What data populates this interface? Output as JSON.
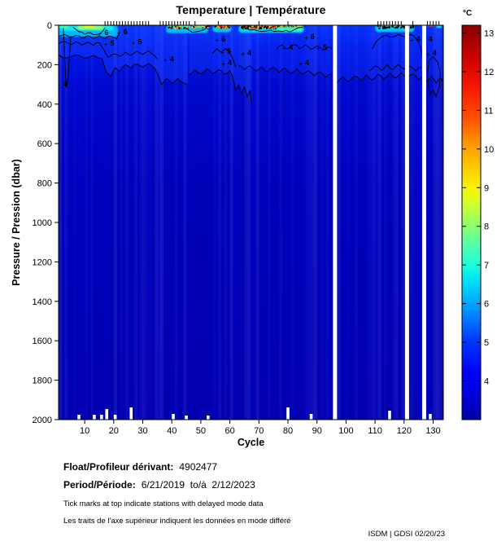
{
  "chart_data": {
    "type": "heatmap",
    "title": "Temperature | Température",
    "xlabel": "Cycle",
    "ylabel": "Pressure / Pression (dbar)",
    "xlim": [
      1,
      133.5
    ],
    "ylim": [
      0,
      2000
    ],
    "x_ticks": [
      10,
      20,
      30,
      40,
      50,
      60,
      70,
      80,
      90,
      100,
      110,
      120,
      130
    ],
    "y_ticks": [
      0,
      200,
      400,
      600,
      800,
      1000,
      1200,
      1400,
      1600,
      1800,
      2000
    ],
    "colorbar": {
      "unit": "°C",
      "vmin": 3,
      "vmax": 13.2,
      "ticks": [
        4,
        5,
        6,
        7,
        8,
        9,
        10,
        11,
        12,
        13
      ],
      "stops": [
        [
          3,
          "#0000A6"
        ],
        [
          3.6,
          "#0000D8"
        ],
        [
          4.2,
          "#0000FA"
        ],
        [
          5,
          "#0034FF"
        ],
        [
          6,
          "#00A4FF"
        ],
        [
          6.6,
          "#00E0F8"
        ],
        [
          7,
          "#1CFFDA"
        ],
        [
          7.6,
          "#5CFFA2"
        ],
        [
          8,
          "#8CFF72"
        ],
        [
          8.6,
          "#D2FF2C"
        ],
        [
          9,
          "#F8F400"
        ],
        [
          10,
          "#FFA400"
        ],
        [
          10.8,
          "#FF5000"
        ],
        [
          11.6,
          "#F81800"
        ],
        [
          12.4,
          "#C80000"
        ],
        [
          13.2,
          "#8C0000"
        ]
      ]
    },
    "base_gradient": [
      [
        0,
        "#0030FC"
      ],
      [
        0.06,
        "#0018EE"
      ],
      [
        0.16,
        "#000AD2"
      ],
      [
        0.4,
        "#0002C0"
      ],
      [
        1,
        "#0000B6"
      ]
    ],
    "region_fill_color": "#1C46FF",
    "surface_patches": [
      {
        "c": [
          1,
          21.5
        ],
        "d": [
          0,
          58
        ],
        "t": 6.2
      },
      {
        "c": [
          1.5,
          20
        ],
        "d": [
          0,
          28
        ],
        "t": 6.8
      },
      {
        "c": [
          7.5,
          16.5
        ],
        "d": [
          0,
          22
        ],
        "t": 8.0
      },
      {
        "c": [
          9.5,
          13.5
        ],
        "d": [
          1,
          13
        ],
        "t": 8.8
      },
      {
        "c": [
          1,
          4.5
        ],
        "d": [
          0,
          14
        ],
        "t": 7.4
      },
      {
        "c": [
          38,
          52.5
        ],
        "d": [
          2,
          40
        ],
        "t": 6.3
      },
      {
        "c": [
          38.5,
          52.5
        ],
        "d": [
          0,
          13
        ],
        "t": 7.5,
        "sp": [
          "#000000",
          "#000000",
          "#b01000",
          "#ff8800",
          "#ffee00",
          "#00e0ff"
        ]
      },
      {
        "c": [
          54,
          60.5
        ],
        "d": [
          2,
          35
        ],
        "t": 6.4
      },
      {
        "c": [
          54.5,
          60
        ],
        "d": [
          0,
          11
        ],
        "t": 9.6,
        "sp": [
          "#000000",
          "#c01000",
          "#ff8800"
        ]
      },
      {
        "c": [
          63,
          85.5
        ],
        "d": [
          2,
          38
        ],
        "t": 6.5
      },
      {
        "c": [
          63.5,
          85
        ],
        "d": [
          0,
          14
        ],
        "t": 9.4,
        "sp": [
          "#000000",
          "#000000",
          "#d02000"
        ]
      },
      {
        "c": [
          76,
          85
        ],
        "d": [
          8,
          30
        ],
        "t": 7.2
      },
      {
        "c": [
          110,
          123.5
        ],
        "d": [
          0,
          34
        ],
        "t": 6.4
      },
      {
        "c": [
          112,
          119
        ],
        "d": [
          0,
          14
        ],
        "t": 7.8
      },
      {
        "c": [
          115.5,
          120
        ],
        "d": [
          0,
          10
        ],
        "t": 9.0
      },
      {
        "c": [
          118.8,
          120.8
        ],
        "d": [
          0,
          9
        ],
        "t": 11.3
      },
      {
        "c": [
          120.8,
          122.3
        ],
        "d": [
          1,
          9
        ],
        "t": 10.0
      },
      {
        "c": [
          110.5,
          123
        ],
        "d": [
          0,
          12
        ],
        "t": 6.5,
        "sp": [
          "#000000",
          "#000000",
          "#101010"
        ]
      },
      {
        "c": [
          127.8,
          130.5
        ],
        "d": [
          0,
          6
        ],
        "t": 10.8
      },
      {
        "c": [
          131,
          133
        ],
        "d": [
          0,
          14
        ],
        "t": 6.8
      }
    ],
    "contours": [
      {
        "pts": [
          [
            1,
            150
          ],
          [
            4,
            165
          ],
          [
            7,
            150
          ],
          [
            10,
            168
          ],
          [
            13,
            152
          ],
          [
            16,
            170
          ],
          [
            17.5,
            240
          ],
          [
            19,
            258
          ],
          [
            20.5,
            215
          ],
          [
            22,
            236
          ],
          [
            24,
            200
          ],
          [
            26,
            218
          ],
          [
            28,
            196
          ],
          [
            30,
            212
          ],
          [
            32,
            194
          ],
          [
            34,
            216
          ],
          [
            35.5,
            258
          ],
          [
            36.5,
            302
          ],
          [
            38,
            272
          ],
          [
            40,
            296
          ],
          [
            42,
            270
          ],
          [
            44,
            292
          ],
          [
            45.5,
            302
          ]
        ],
        "fill": 0.38
      },
      {
        "pts": [
          [
            2.6,
            15
          ],
          [
            3,
            120
          ],
          [
            3.4,
            260
          ],
          [
            3.8,
            315
          ],
          [
            4.3,
            250
          ],
          [
            4.8,
            140
          ],
          [
            5.2,
            55
          ]
        ],
        "fill": 0
      },
      {
        "pts": [
          [
            1,
            95
          ],
          [
            3,
            82
          ],
          [
            5,
            98
          ],
          [
            7,
            84
          ],
          [
            9,
            100
          ],
          [
            11,
            86
          ],
          [
            13,
            102
          ],
          [
            15,
            88
          ],
          [
            16.5,
            122
          ],
          [
            18,
            162
          ],
          [
            20,
            146
          ],
          [
            22,
            158
          ],
          [
            24,
            136
          ],
          [
            26,
            150
          ],
          [
            28,
            132
          ],
          [
            30,
            148
          ],
          [
            32,
            130
          ],
          [
            34,
            152
          ],
          [
            35,
            172
          ]
        ],
        "fill": 0
      },
      {
        "pts": [
          [
            1,
            58
          ],
          [
            3,
            48
          ],
          [
            5,
            62
          ],
          [
            7,
            50
          ],
          [
            9,
            64
          ],
          [
            11,
            52
          ],
          [
            13,
            66
          ],
          [
            15,
            54
          ],
          [
            17,
            68
          ],
          [
            19,
            56
          ],
          [
            21,
            70
          ],
          [
            21.8,
            40
          ]
        ],
        "fill": 0
      },
      {
        "pts": [
          [
            46,
            252
          ],
          [
            48,
            226
          ],
          [
            50,
            246
          ],
          [
            52,
            222
          ],
          [
            54,
            246
          ],
          [
            56,
            226
          ],
          [
            58,
            248
          ],
          [
            60,
            230
          ],
          [
            61,
            262
          ],
          [
            62,
            330
          ],
          [
            63,
            302
          ],
          [
            64,
            346
          ],
          [
            65,
            312
          ],
          [
            66,
            362
          ],
          [
            67,
            332
          ],
          [
            67.6,
            405
          ]
        ],
        "fill": 0.32
      },
      {
        "pts": [
          [
            54,
            142
          ],
          [
            55.5,
            120
          ],
          [
            57,
            138
          ],
          [
            58.5,
            118
          ],
          [
            60,
            140
          ],
          [
            61,
            172
          ],
          [
            62,
            212
          ]
        ],
        "fill": 0
      },
      {
        "pts": [
          [
            63,
            202
          ],
          [
            65,
            226
          ],
          [
            67,
            206
          ],
          [
            69,
            232
          ],
          [
            71,
            212
          ],
          [
            73,
            236
          ],
          [
            75,
            214
          ],
          [
            77,
            240
          ],
          [
            79,
            216
          ],
          [
            81,
            244
          ],
          [
            83,
            222
          ],
          [
            85,
            250
          ],
          [
            87,
            230
          ],
          [
            89,
            256
          ],
          [
            91,
            236
          ],
          [
            93,
            264
          ],
          [
            95.3,
            246
          ]
        ],
        "fill": 0.2
      },
      {
        "pts": [
          [
            76,
            122
          ],
          [
            78,
            100
          ],
          [
            80,
            118
          ],
          [
            82,
            98
          ],
          [
            84,
            118
          ],
          [
            86,
            100
          ],
          [
            88,
            122
          ],
          [
            90,
            104
          ],
          [
            92,
            126
          ],
          [
            94,
            108
          ],
          [
            95.3,
            120
          ]
        ],
        "fill": 0
      },
      {
        "pts": [
          [
            97,
            292
          ],
          [
            99,
            262
          ],
          [
            101,
            286
          ],
          [
            103,
            258
          ],
          [
            105,
            282
          ],
          [
            107,
            252
          ],
          [
            109,
            278
          ],
          [
            111,
            248
          ],
          [
            113,
            272
          ],
          [
            115,
            242
          ],
          [
            117,
            268
          ],
          [
            119,
            240
          ],
          [
            121,
            268
          ],
          [
            123,
            246
          ],
          [
            125,
            276
          ],
          [
            126.5,
            255
          ],
          [
            128,
            286
          ],
          [
            129.5,
            258
          ],
          [
            131,
            292
          ],
          [
            132.5,
            266
          ],
          [
            133.5,
            288
          ]
        ],
        "fill": 0.22
      },
      {
        "pts": [
          [
            108,
            232
          ],
          [
            110,
            206
          ],
          [
            112,
            228
          ],
          [
            114,
            200
          ],
          [
            116,
            226
          ],
          [
            118,
            198
          ],
          [
            120,
            222
          ],
          [
            122,
            206
          ],
          [
            124,
            232
          ],
          [
            126,
            212
          ]
        ],
        "fill": 0
      },
      {
        "pts": [
          [
            109,
            120
          ],
          [
            110.5,
            80
          ],
          [
            112,
            62
          ],
          [
            114,
            50
          ],
          [
            116,
            60
          ],
          [
            118,
            46
          ],
          [
            120,
            58
          ],
          [
            122,
            48
          ],
          [
            124,
            66
          ],
          [
            125.3,
            95
          ],
          [
            126,
            135
          ],
          [
            126.4,
            172
          ]
        ],
        "fill": 0
      },
      {
        "pts": [
          [
            128.5,
            182
          ],
          [
            130,
            160
          ],
          [
            131.5,
            186
          ],
          [
            132.5,
            240
          ],
          [
            132.2,
            310
          ],
          [
            131,
            362
          ],
          [
            130,
            330
          ],
          [
            129,
            356
          ],
          [
            128.3,
            300
          ],
          [
            128.1,
            240
          ],
          [
            128.5,
            182
          ]
        ],
        "fill": 0
      },
      {
        "pts": [
          [
            6,
            10
          ],
          [
            8,
            32
          ],
          [
            10,
            46
          ],
          [
            12,
            38
          ],
          [
            14,
            48
          ],
          [
            16,
            34
          ],
          [
            17,
            14
          ]
        ],
        "fill": 0
      },
      {
        "pts": [
          [
            44,
            8
          ],
          [
            46,
            26
          ],
          [
            48,
            34
          ],
          [
            50,
            28
          ],
          [
            52,
            10
          ]
        ],
        "fill": 0
      },
      {
        "pts": [
          [
            64,
            8
          ],
          [
            67,
            24
          ],
          [
            70,
            30
          ],
          [
            74,
            26
          ],
          [
            78,
            32
          ],
          [
            82,
            24
          ],
          [
            85,
            10
          ]
        ],
        "fill": 0
      }
    ],
    "contour_labels": [
      {
        "v": 4,
        "c": 3.2,
        "d": 300
      },
      {
        "v": 6,
        "c": 17.5,
        "d": 38
      },
      {
        "v": 5,
        "c": 19.5,
        "d": 90
      },
      {
        "v": 6,
        "c": 24,
        "d": 33
      },
      {
        "v": 5,
        "c": 29,
        "d": 84
      },
      {
        "v": 4,
        "c": 40,
        "d": 172
      },
      {
        "v": 6,
        "c": 57.8,
        "d": 70
      },
      {
        "v": 5,
        "c": 59.7,
        "d": 132
      },
      {
        "v": 4,
        "c": 60,
        "d": 190
      },
      {
        "v": 4,
        "c": 66.7,
        "d": 140
      },
      {
        "v": 4,
        "c": 81,
        "d": 112
      },
      {
        "v": 4,
        "c": 86.6,
        "d": 190
      },
      {
        "v": 6,
        "c": 88.5,
        "d": 58
      },
      {
        "v": 5,
        "c": 92.7,
        "d": 112
      },
      {
        "v": 4,
        "c": 124.9,
        "d": 70
      },
      {
        "v": 4,
        "c": 129.1,
        "d": 70
      },
      {
        "v": 4,
        "c": 130.5,
        "d": 140
      }
    ],
    "missing_cycle_gaps": [
      {
        "c0": 95.5,
        "c1": 96.9
      },
      {
        "c0": 120.3,
        "c1": 121.7
      },
      {
        "c0": 126.2,
        "c1": 127.6
      }
    ],
    "delayed_mode_cycles": [
      17,
      18,
      19,
      20,
      21,
      22,
      23,
      24,
      25,
      26,
      27,
      28,
      29,
      30,
      31,
      32,
      36,
      37,
      38,
      39,
      40,
      41,
      42,
      43,
      44,
      45,
      46,
      48,
      56,
      70,
      80,
      111,
      112,
      113,
      114,
      115,
      116,
      117,
      118,
      119,
      123,
      128,
      129,
      130,
      131,
      132
    ],
    "station_bottom_marks": [
      {
        "c": 8,
        "h": 6
      },
      {
        "c": 13.3,
        "h": 6
      },
      {
        "c": 15.8,
        "h": 6
      },
      {
        "c": 17.6,
        "h": 13
      },
      {
        "c": 20.5,
        "h": 6
      },
      {
        "c": 26,
        "h": 15
      },
      {
        "c": 40.5,
        "h": 7
      },
      {
        "c": 45,
        "h": 5
      },
      {
        "c": 52.5,
        "h": 5
      },
      {
        "c": 80,
        "h": 15
      },
      {
        "c": 88,
        "h": 7
      },
      {
        "c": 115,
        "h": 11
      },
      {
        "c": 129,
        "h": 7
      }
    ]
  },
  "footer": {
    "float_label": "Float/Profileur dérivant:",
    "float_value": "4902477",
    "period_label": "Period/Période:",
    "period_value": "6/21/2019  to/à  2/12/2023",
    "note_en": "Tick marks at top indicate stations with delayed mode data",
    "note_fr": "Les traits de l'axe supérieur indiquent les données en mode différé",
    "credit": "ISDM | GDSI 02/20/23"
  }
}
